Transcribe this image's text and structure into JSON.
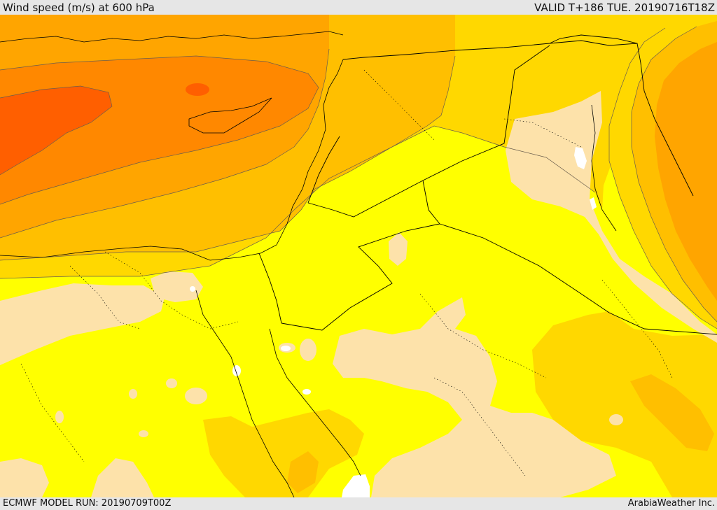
{
  "header": {
    "title": "Wind speed (m/s) at 600 hPa",
    "valid": "VALID T+186 TUE. 20190716T18Z"
  },
  "footer": {
    "model_run": "ECMWF MODEL RUN: 20190709T00Z",
    "credit": "ArabiaWeather Inc."
  },
  "colors": {
    "calm": "#fde2aa",
    "level1": "#ffff00",
    "level2": "#ffd800",
    "level3": "#ffbf00",
    "level4": "#ffa500",
    "level5": "#ff8800",
    "level6": "#ff5f00",
    "sea_missing": "#ffffff",
    "coastline": "#000000",
    "border": "#000000"
  },
  "map": {
    "variable": "wind speed",
    "units": "m/s",
    "pressure_level_hpa": 600,
    "region": "Eastern Mediterranean, Egypt, Levant, Arabian Peninsula"
  }
}
